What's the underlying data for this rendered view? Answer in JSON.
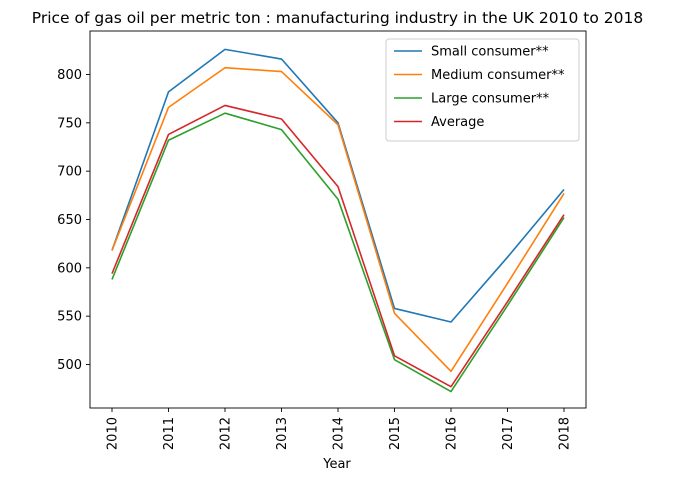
{
  "chart_data": {
    "type": "line",
    "title": "Price of gas oil per metric ton : manufacturing industry in the UK 2010 to 2018",
    "xlabel": "Year",
    "ylabel": "",
    "categories": [
      "2010",
      "2011",
      "2012",
      "2013",
      "2014",
      "2015",
      "2016",
      "2017",
      "2018"
    ],
    "ylim": [
      455,
      845
    ],
    "yticks": [
      500,
      550,
      600,
      650,
      700,
      750,
      800
    ],
    "grid": false,
    "legend_position": "top-right",
    "series": [
      {
        "name": "Small consumer**",
        "color": "#1f77b4",
        "values": [
          618,
          782,
          826,
          816,
          750,
          558,
          544,
          611,
          681
        ]
      },
      {
        "name": "Medium consumer**",
        "color": "#ff7f0e",
        "values": [
          618,
          766,
          807,
          803,
          748,
          553,
          493,
          584,
          677
        ]
      },
      {
        "name": "Large consumer**",
        "color": "#2ca02c",
        "values": [
          588,
          732,
          760,
          743,
          671,
          505,
          472,
          561,
          652
        ]
      },
      {
        "name": "Average",
        "color": "#d62728",
        "values": [
          594,
          738,
          768,
          754,
          684,
          509,
          477,
          565,
          655
        ]
      }
    ]
  }
}
